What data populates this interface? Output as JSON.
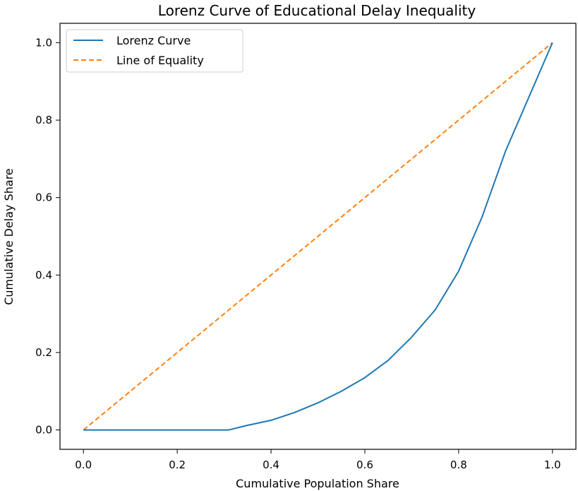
{
  "chart_data": {
    "type": "line",
    "title": "Lorenz Curve of Educational Delay Inequality",
    "xlabel": "Cumulative Population Share",
    "ylabel": "Cumulative Delay Share",
    "xlim": [
      -0.05,
      1.05
    ],
    "ylim": [
      -0.05,
      1.05
    ],
    "xticks": [
      "0.0",
      "0.2",
      "0.4",
      "0.6",
      "0.8",
      "1.0"
    ],
    "yticks": [
      "0.0",
      "0.2",
      "0.4",
      "0.6",
      "0.8",
      "1.0"
    ],
    "grid": false,
    "legend_position": "top-left",
    "series": [
      {
        "name": "Lorenz Curve",
        "color": "#1f77b4",
        "style": "solid",
        "x": [
          0.0,
          0.1,
          0.2,
          0.31,
          0.35,
          0.4,
          0.45,
          0.5,
          0.55,
          0.6,
          0.65,
          0.7,
          0.75,
          0.8,
          0.85,
          0.9,
          0.95,
          1.0
        ],
        "y": [
          0.0,
          0.0,
          0.0,
          0.0,
          0.012,
          0.025,
          0.045,
          0.07,
          0.1,
          0.135,
          0.18,
          0.24,
          0.31,
          0.41,
          0.55,
          0.72,
          0.86,
          1.0
        ]
      },
      {
        "name": "Line of Equality",
        "color": "#ff7f0e",
        "style": "dashed",
        "x": [
          0.0,
          1.0
        ],
        "y": [
          0.0,
          1.0
        ]
      }
    ]
  }
}
